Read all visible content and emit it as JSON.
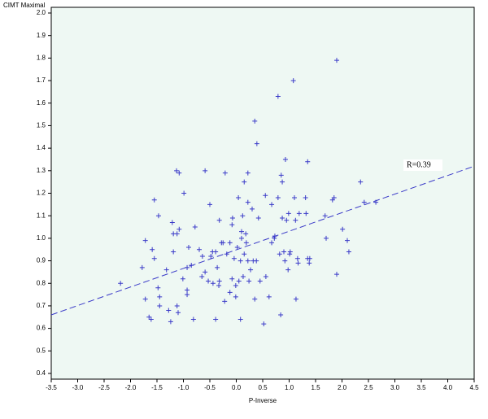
{
  "chart_data": {
    "type": "scatter",
    "ylabel": "CIMT Maximal",
    "xlabel": "P-Inverse",
    "annotation": "R=0.39",
    "color": "#3a3ac8",
    "background": "#eef8f3",
    "x": [
      -2.19,
      -1.72,
      -1.78,
      -1.72,
      -1.65,
      -1.61,
      -1.59,
      -1.55,
      -1.55,
      -1.48,
      -1.45,
      -1.45,
      -1.47,
      -1.32,
      -1.28,
      -1.24,
      -1.21,
      -1.19,
      -1.19,
      -1.13,
      -1.08,
      -1.12,
      -1.08,
      -1.12,
      -1.1,
      -1.01,
      -0.99,
      -0.93,
      -0.93,
      -0.93,
      -0.9,
      -0.85,
      -0.81,
      -0.78,
      -0.7,
      -0.65,
      -0.64,
      -0.59,
      -0.59,
      -0.53,
      -0.5,
      -0.48,
      -0.45,
      -0.44,
      -0.39,
      -0.39,
      -0.36,
      -0.33,
      -0.32,
      -0.32,
      -0.28,
      -0.25,
      -0.22,
      -0.21,
      -0.18,
      -0.12,
      -0.12,
      -0.08,
      -0.08,
      -0.07,
      -0.04,
      -0.01,
      -0.01,
      0.02,
      0.04,
      0.05,
      0.08,
      0.08,
      0.1,
      0.1,
      0.12,
      0.13,
      0.15,
      0.15,
      0.18,
      0.19,
      0.22,
      0.22,
      0.22,
      0.24,
      0.27,
      0.3,
      0.32,
      0.35,
      0.35,
      0.38,
      0.39,
      0.42,
      0.45,
      0.52,
      0.55,
      0.56,
      0.62,
      0.67,
      0.67,
      0.72,
      0.73,
      0.79,
      0.79,
      0.82,
      0.84,
      0.85,
      0.87,
      0.87,
      0.9,
      0.92,
      0.93,
      0.95,
      0.98,
      0.99,
      1.01,
      1.02,
      1.08,
      1.1,
      1.12,
      1.13,
      1.16,
      1.17,
      1.19,
      1.31,
      1.32,
      1.35,
      1.35,
      1.38,
      1.39,
      1.68,
      1.7,
      1.82,
      1.85,
      1.9,
      1.9,
      2.01,
      2.1,
      2.13,
      2.35,
      2.42,
      2.64
    ],
    "values": [
      0.8,
      0.99,
      0.87,
      0.73,
      0.65,
      0.64,
      0.95,
      1.17,
      0.91,
      0.78,
      0.74,
      0.7,
      1.1,
      0.86,
      0.68,
      0.63,
      1.07,
      1.02,
      0.94,
      1.3,
      1.29,
      1.02,
      1.04,
      0.7,
      0.67,
      0.82,
      1.2,
      0.75,
      0.77,
      0.87,
      0.96,
      0.88,
      0.64,
      1.05,
      0.95,
      0.83,
      0.92,
      1.3,
      0.85,
      0.81,
      1.15,
      0.92,
      0.94,
      0.8,
      0.64,
      0.94,
      0.87,
      0.79,
      0.81,
      1.08,
      0.98,
      0.98,
      0.72,
      1.29,
      0.93,
      0.98,
      0.76,
      0.82,
      1.06,
      1.09,
      0.91,
      0.74,
      0.79,
      0.96,
      1.18,
      0.81,
      0.64,
      0.9,
      1.03,
      1.0,
      1.1,
      0.83,
      1.25,
      0.93,
      1.02,
      0.98,
      1.29,
      1.16,
      0.9,
      0.81,
      0.86,
      1.13,
      0.9,
      0.73,
      1.52,
      0.9,
      1.42,
      1.09,
      0.81,
      0.62,
      1.19,
      0.83,
      0.74,
      0.98,
      1.15,
      1.0,
      1.01,
      1.63,
      1.18,
      0.93,
      0.66,
      1.28,
      1.25,
      1.09,
      0.94,
      0.9,
      1.35,
      1.08,
      0.86,
      1.11,
      0.93,
      0.94,
      1.7,
      1.18,
      1.08,
      0.73,
      0.91,
      0.89,
      1.11,
      1.18,
      1.11,
      1.34,
      0.91,
      0.89,
      0.91,
      1.1,
      1.0,
      1.17,
      1.18,
      0.84,
      1.79,
      1.04,
      0.99,
      0.94,
      1.25,
      1.16,
      1.16
    ],
    "fit": {
      "x": [
        -3.5,
        4.5
      ],
      "values": [
        0.66,
        1.32
      ]
    },
    "xlim": [
      -3.5,
      4.5
    ],
    "xticks": [
      -3.5,
      {
        "value": -3,
        "label": "-3.0"
      },
      -2.5,
      {
        "value": -2,
        "label": "-2.0"
      },
      -1.5,
      {
        "value": -1,
        "label": "-1.0"
      },
      -0.5,
      {
        "value": 0,
        "label": "0.0"
      },
      0.5,
      {
        "value": 1,
        "label": "1.0"
      },
      1.5,
      {
        "value": 2,
        "label": "2.0"
      },
      2.5,
      {
        "value": 3,
        "label": "3.0"
      },
      3.5,
      {
        "value": 4,
        "label": "4.0"
      },
      4.5
    ],
    "ylim": [
      0.4,
      2.0
    ],
    "yticks": [
      0.4,
      0.5,
      0.6,
      0.7,
      0.8,
      0.9,
      {
        "value": 1,
        "label": "1.0"
      },
      1.1,
      1.2,
      1.3,
      1.4,
      1.5,
      1.6,
      1.7,
      1.8,
      1.9,
      {
        "value": 2,
        "label": "2.0"
      }
    ]
  }
}
